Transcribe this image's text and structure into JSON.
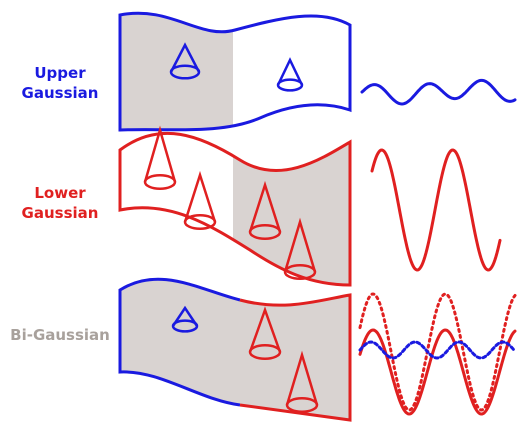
{
  "labels": [
    {
      "lines": [
        "Upper",
        "Gaussian"
      ]
    },
    {
      "lines": [
        "Lower",
        "Gaussian"
      ]
    },
    {
      "lines": [
        "Bi-Gaussian"
      ]
    }
  ]
}
